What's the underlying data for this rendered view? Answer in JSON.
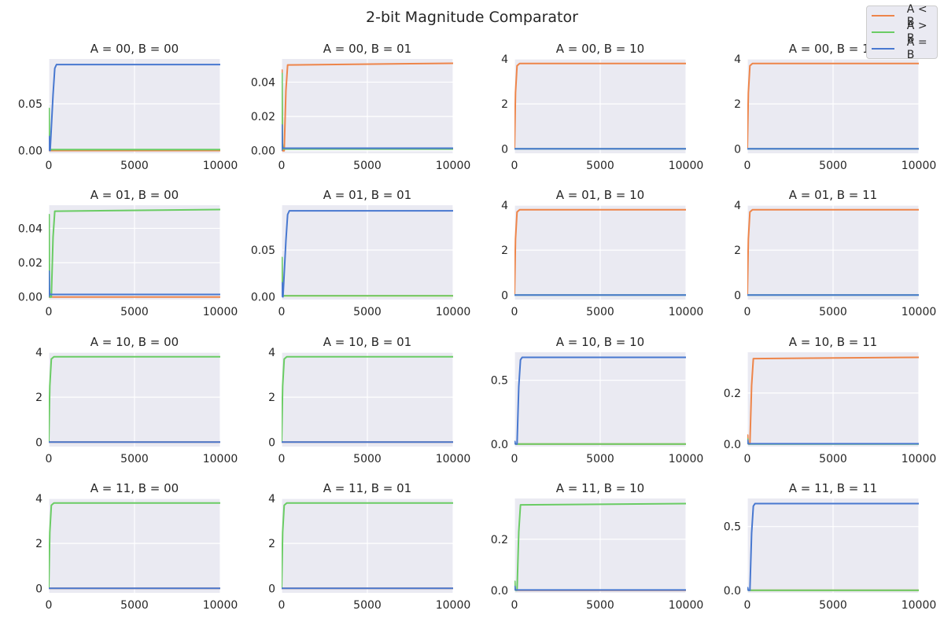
{
  "suptitle": "2-bit Magnitude Comparator",
  "legend": [
    {
      "label": "A < B",
      "color": "#ee854a"
    },
    {
      "label": "A > B",
      "color": "#6acc64"
    },
    {
      "label": "A = B",
      "color": "#4878d0"
    }
  ],
  "chart_data": [
    {
      "type": "line",
      "title": "A = 00, B = 00",
      "xlim": [
        0,
        10000
      ],
      "ylim": [
        -0.003,
        0.098
      ],
      "xticks": [
        0,
        5000,
        10000
      ],
      "yticks": [
        0.0,
        0.05
      ],
      "ytick_labels": [
        "0.00",
        "0.05"
      ],
      "series": [
        {
          "name": "A < B",
          "x": [
            0,
            10000
          ],
          "y": [
            0.0,
            0.0
          ]
        },
        {
          "name": "A > B",
          "x": [
            0,
            20,
            40,
            60,
            100,
            10000
          ],
          "y": [
            0.0,
            0.045,
            0.005,
            0.001,
            0.001,
            0.001
          ]
        },
        {
          "name": "A = B",
          "x": [
            0,
            20,
            40,
            60,
            80,
            250,
            350,
            450,
            10000
          ],
          "y": [
            0.0,
            0.015,
            0.002,
            0.0,
            0.0,
            0.06,
            0.088,
            0.092,
            0.092
          ]
        }
      ]
    },
    {
      "type": "line",
      "title": "A = 00, B = 01",
      "xlim": [
        0,
        10000
      ],
      "ylim": [
        -0.0015,
        0.0535
      ],
      "xticks": [
        0,
        5000,
        10000
      ],
      "yticks": [
        0.0,
        0.02,
        0.04
      ],
      "ytick_labels": [
        "0.00",
        "0.02",
        "0.04"
      ],
      "series": [
        {
          "name": "A < B",
          "x": [
            0,
            20,
            40,
            60,
            150,
            250,
            350,
            10000
          ],
          "y": [
            0.0,
            0.047,
            0.005,
            0.0,
            0.0,
            0.035,
            0.05,
            0.051
          ]
        },
        {
          "name": "A > B",
          "x": [
            0,
            20,
            40,
            80,
            10000
          ],
          "y": [
            0.0,
            0.045,
            0.005,
            0.001,
            0.001
          ]
        },
        {
          "name": "A = B",
          "x": [
            0,
            20,
            40,
            80,
            10000
          ],
          "y": [
            0.0,
            0.015,
            0.002,
            0.0015,
            0.0015
          ]
        }
      ]
    },
    {
      "type": "line",
      "title": "A = 00, B = 10",
      "xlim": [
        0,
        10000
      ],
      "ylim": [
        -0.2,
        4.0
      ],
      "xticks": [
        0,
        5000,
        10000
      ],
      "yticks": [
        0,
        2,
        4
      ],
      "ytick_labels": [
        "0",
        "2",
        "4"
      ],
      "series": [
        {
          "name": "A < B",
          "x": [
            0,
            60,
            150,
            300,
            10000
          ],
          "y": [
            0.0,
            2.5,
            3.7,
            3.8,
            3.8
          ]
        },
        {
          "name": "A > B",
          "x": [
            0,
            10000
          ],
          "y": [
            0.0,
            0.0
          ]
        },
        {
          "name": "A = B",
          "x": [
            0,
            10000
          ],
          "y": [
            0.0,
            0.0
          ]
        }
      ]
    },
    {
      "type": "line",
      "title": "A = 00, B = 11",
      "xlim": [
        0,
        10000
      ],
      "ylim": [
        -0.2,
        4.0
      ],
      "xticks": [
        0,
        5000,
        10000
      ],
      "yticks": [
        0,
        2,
        4
      ],
      "ytick_labels": [
        "0",
        "2",
        "4"
      ],
      "series": [
        {
          "name": "A < B",
          "x": [
            0,
            60,
            150,
            300,
            10000
          ],
          "y": [
            0.0,
            2.5,
            3.7,
            3.8,
            3.8
          ]
        },
        {
          "name": "A > B",
          "x": [
            0,
            10000
          ],
          "y": [
            0.0,
            0.0
          ]
        },
        {
          "name": "A = B",
          "x": [
            0,
            10000
          ],
          "y": [
            0.0,
            0.0
          ]
        }
      ]
    },
    {
      "type": "line",
      "title": "A = 01, B = 00",
      "xlim": [
        0,
        10000
      ],
      "ylim": [
        -0.0015,
        0.0535
      ],
      "xticks": [
        0,
        5000,
        10000
      ],
      "yticks": [
        0.0,
        0.02,
        0.04
      ],
      "ytick_labels": [
        "0.00",
        "0.02",
        "0.04"
      ],
      "series": [
        {
          "name": "A < B",
          "x": [
            0,
            60,
            10000
          ],
          "y": [
            0.0,
            0.0,
            0.0
          ]
        },
        {
          "name": "A > B",
          "x": [
            0,
            20,
            40,
            60,
            150,
            250,
            350,
            10000
          ],
          "y": [
            0.0,
            0.048,
            0.005,
            0.0,
            0.0,
            0.035,
            0.05,
            0.051
          ]
        },
        {
          "name": "A = B",
          "x": [
            0,
            20,
            40,
            80,
            10000
          ],
          "y": [
            0.0,
            0.015,
            0.002,
            0.0015,
            0.0015
          ]
        }
      ]
    },
    {
      "type": "line",
      "title": "A = 01, B = 01",
      "xlim": [
        0,
        10000
      ],
      "ylim": [
        -0.003,
        0.098
      ],
      "xticks": [
        0,
        5000,
        10000
      ],
      "yticks": [
        0.0,
        0.05
      ],
      "ytick_labels": [
        "0.00",
        "0.05"
      ],
      "series": [
        {
          "name": "A < B",
          "x": [
            0,
            20,
            40,
            60,
            100,
            10000
          ],
          "y": [
            0.0,
            0.04,
            0.005,
            0.001,
            0.001,
            0.001
          ]
        },
        {
          "name": "A > B",
          "x": [
            0,
            20,
            40,
            60,
            100,
            10000
          ],
          "y": [
            0.0,
            0.042,
            0.005,
            0.001,
            0.001,
            0.001
          ]
        },
        {
          "name": "A = B",
          "x": [
            0,
            20,
            40,
            60,
            80,
            250,
            350,
            450,
            10000
          ],
          "y": [
            0.0,
            0.015,
            0.002,
            0.0,
            0.0,
            0.06,
            0.088,
            0.092,
            0.092
          ]
        }
      ]
    },
    {
      "type": "line",
      "title": "A = 01, B = 10",
      "xlim": [
        0,
        10000
      ],
      "ylim": [
        -0.2,
        4.0
      ],
      "xticks": [
        0,
        5000,
        10000
      ],
      "yticks": [
        0,
        2,
        4
      ],
      "ytick_labels": [
        "0",
        "2",
        "4"
      ],
      "series": [
        {
          "name": "A < B",
          "x": [
            0,
            60,
            150,
            300,
            10000
          ],
          "y": [
            0.0,
            2.5,
            3.7,
            3.8,
            3.8
          ]
        },
        {
          "name": "A > B",
          "x": [
            0,
            10000
          ],
          "y": [
            0.0,
            0.0
          ]
        },
        {
          "name": "A = B",
          "x": [
            0,
            10000
          ],
          "y": [
            0.0,
            0.0
          ]
        }
      ]
    },
    {
      "type": "line",
      "title": "A = 01, B = 11",
      "xlim": [
        0,
        10000
      ],
      "ylim": [
        -0.2,
        4.0
      ],
      "xticks": [
        0,
        5000,
        10000
      ],
      "yticks": [
        0,
        2,
        4
      ],
      "ytick_labels": [
        "0",
        "2",
        "4"
      ],
      "series": [
        {
          "name": "A < B",
          "x": [
            0,
            60,
            150,
            300,
            10000
          ],
          "y": [
            0.0,
            2.5,
            3.7,
            3.8,
            3.8
          ]
        },
        {
          "name": "A > B",
          "x": [
            0,
            10000
          ],
          "y": [
            0.0,
            0.0
          ]
        },
        {
          "name": "A = B",
          "x": [
            0,
            10000
          ],
          "y": [
            0.0,
            0.0
          ]
        }
      ]
    },
    {
      "type": "line",
      "title": "A = 10, B = 00",
      "xlim": [
        0,
        10000
      ],
      "ylim": [
        -0.2,
        4.0
      ],
      "xticks": [
        0,
        5000,
        10000
      ],
      "yticks": [
        0,
        2,
        4
      ],
      "ytick_labels": [
        "0",
        "2",
        "4"
      ],
      "series": [
        {
          "name": "A < B",
          "x": [
            0,
            10000
          ],
          "y": [
            0.0,
            0.0
          ]
        },
        {
          "name": "A > B",
          "x": [
            0,
            60,
            150,
            300,
            10000
          ],
          "y": [
            0.0,
            2.5,
            3.7,
            3.8,
            3.8
          ]
        },
        {
          "name": "A = B",
          "x": [
            0,
            10000
          ],
          "y": [
            0.0,
            0.0
          ]
        }
      ]
    },
    {
      "type": "line",
      "title": "A = 10, B = 01",
      "xlim": [
        0,
        10000
      ],
      "ylim": [
        -0.2,
        4.0
      ],
      "xticks": [
        0,
        5000,
        10000
      ],
      "yticks": [
        0,
        2,
        4
      ],
      "ytick_labels": [
        "0",
        "2",
        "4"
      ],
      "series": [
        {
          "name": "A < B",
          "x": [
            0,
            10000
          ],
          "y": [
            0.0,
            0.0
          ]
        },
        {
          "name": "A > B",
          "x": [
            0,
            60,
            150,
            300,
            10000
          ],
          "y": [
            0.0,
            2.5,
            3.7,
            3.8,
            3.8
          ]
        },
        {
          "name": "A = B",
          "x": [
            0,
            10000
          ],
          "y": [
            0.0,
            0.0
          ]
        }
      ]
    },
    {
      "type": "line",
      "title": "A = 10, B = 10",
      "xlim": [
        0,
        10000
      ],
      "ylim": [
        -0.02,
        0.72
      ],
      "xticks": [
        0,
        5000,
        10000
      ],
      "yticks": [
        0.0,
        0.5
      ],
      "ytick_labels": [
        "0.0",
        "0.5"
      ],
      "series": [
        {
          "name": "A < B",
          "x": [
            0,
            20,
            40,
            80,
            10000
          ],
          "y": [
            0.0,
            0.01,
            0.002,
            0.0,
            0.0
          ]
        },
        {
          "name": "A > B",
          "x": [
            0,
            20,
            40,
            80,
            10000
          ],
          "y": [
            0.0,
            0.01,
            0.002,
            0.0,
            0.0
          ]
        },
        {
          "name": "A = B",
          "x": [
            0,
            20,
            40,
            60,
            150,
            250,
            350,
            450,
            10000
          ],
          "y": [
            0.0,
            0.02,
            0.005,
            0.0,
            0.0,
            0.45,
            0.66,
            0.68,
            0.68
          ]
        }
      ]
    },
    {
      "type": "line",
      "title": "A = 10, B = 11",
      "xlim": [
        0,
        10000
      ],
      "ylim": [
        -0.01,
        0.36
      ],
      "xticks": [
        0,
        5000,
        10000
      ],
      "yticks": [
        0.0,
        0.2
      ],
      "ytick_labels": [
        "0.0",
        "0.2"
      ],
      "series": [
        {
          "name": "A < B",
          "x": [
            0,
            20,
            40,
            60,
            150,
            250,
            350,
            10000
          ],
          "y": [
            0.0,
            0.035,
            0.005,
            0.0,
            0.0,
            0.23,
            0.335,
            0.34
          ]
        },
        {
          "name": "A > B",
          "x": [
            0,
            20,
            40,
            80,
            10000
          ],
          "y": [
            0.0,
            0.02,
            0.003,
            0.0,
            0.0
          ]
        },
        {
          "name": "A = B",
          "x": [
            0,
            20,
            40,
            80,
            10000
          ],
          "y": [
            0.0,
            0.015,
            0.002,
            0.001,
            0.001
          ]
        }
      ]
    },
    {
      "type": "line",
      "title": "A = 11, B = 00",
      "xlim": [
        0,
        10000
      ],
      "ylim": [
        -0.2,
        4.0
      ],
      "xticks": [
        0,
        5000,
        10000
      ],
      "yticks": [
        0,
        2,
        4
      ],
      "ytick_labels": [
        "0",
        "2",
        "4"
      ],
      "series": [
        {
          "name": "A < B",
          "x": [
            0,
            10000
          ],
          "y": [
            0.0,
            0.0
          ]
        },
        {
          "name": "A > B",
          "x": [
            0,
            60,
            150,
            300,
            10000
          ],
          "y": [
            0.0,
            2.5,
            3.7,
            3.8,
            3.8
          ]
        },
        {
          "name": "A = B",
          "x": [
            0,
            10000
          ],
          "y": [
            0.0,
            0.0
          ]
        }
      ]
    },
    {
      "type": "line",
      "title": "A = 11, B = 01",
      "xlim": [
        0,
        10000
      ],
      "ylim": [
        -0.2,
        4.0
      ],
      "xticks": [
        0,
        5000,
        10000
      ],
      "yticks": [
        0,
        2,
        4
      ],
      "ytick_labels": [
        "0",
        "2",
        "4"
      ],
      "series": [
        {
          "name": "A < B",
          "x": [
            0,
            10000
          ],
          "y": [
            0.0,
            0.0
          ]
        },
        {
          "name": "A > B",
          "x": [
            0,
            60,
            150,
            300,
            10000
          ],
          "y": [
            0.0,
            2.5,
            3.7,
            3.8,
            3.8
          ]
        },
        {
          "name": "A = B",
          "x": [
            0,
            10000
          ],
          "y": [
            0.0,
            0.0
          ]
        }
      ]
    },
    {
      "type": "line",
      "title": "A = 11, B = 10",
      "xlim": [
        0,
        10000
      ],
      "ylim": [
        -0.01,
        0.36
      ],
      "xticks": [
        0,
        5000,
        10000
      ],
      "yticks": [
        0.0,
        0.2
      ],
      "ytick_labels": [
        "0.0",
        "0.2"
      ],
      "series": [
        {
          "name": "A < B",
          "x": [
            0,
            20,
            40,
            80,
            10000
          ],
          "y": [
            0.0,
            0.02,
            0.003,
            0.0,
            0.0
          ]
        },
        {
          "name": "A > B",
          "x": [
            0,
            20,
            40,
            60,
            150,
            250,
            350,
            10000
          ],
          "y": [
            0.0,
            0.035,
            0.005,
            0.0,
            0.0,
            0.23,
            0.335,
            0.34
          ]
        },
        {
          "name": "A = B",
          "x": [
            0,
            20,
            40,
            80,
            10000
          ],
          "y": [
            0.0,
            0.015,
            0.002,
            0.001,
            0.001
          ]
        }
      ]
    },
    {
      "type": "line",
      "title": "A = 11, B = 11",
      "xlim": [
        0,
        10000
      ],
      "ylim": [
        -0.02,
        0.72
      ],
      "xticks": [
        0,
        5000,
        10000
      ],
      "yticks": [
        0.0,
        0.5
      ],
      "ytick_labels": [
        "0.0",
        "0.5"
      ],
      "series": [
        {
          "name": "A < B",
          "x": [
            0,
            20,
            40,
            80,
            10000
          ],
          "y": [
            0.0,
            0.01,
            0.002,
            0.0,
            0.0
          ]
        },
        {
          "name": "A > B",
          "x": [
            0,
            20,
            40,
            80,
            10000
          ],
          "y": [
            0.0,
            0.01,
            0.002,
            0.0,
            0.0
          ]
        },
        {
          "name": "A = B",
          "x": [
            0,
            20,
            40,
            60,
            150,
            250,
            350,
            450,
            10000
          ],
          "y": [
            0.0,
            0.02,
            0.005,
            0.0,
            0.0,
            0.45,
            0.66,
            0.68,
            0.68
          ]
        }
      ]
    }
  ]
}
